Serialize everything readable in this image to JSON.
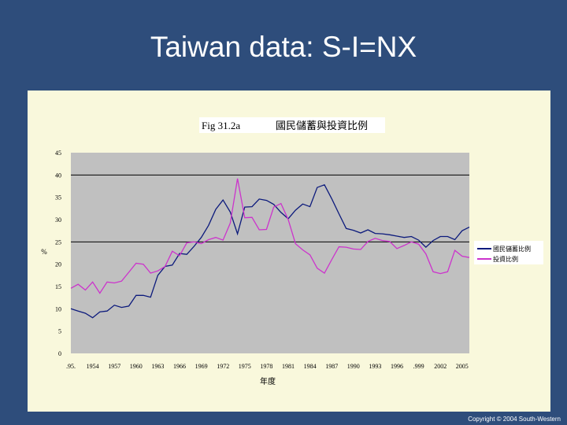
{
  "slide": {
    "title": "Taiwan data: S-I=NX",
    "copyright": "Copyright © 2004 South-Western"
  },
  "colors": {
    "background": "#2e4d7b",
    "panel": "#f9f8dc",
    "plot_area": "#c0c0c0",
    "saving_line": "#0c1a7c",
    "investment_line": "#cc33cc"
  },
  "chart_data": {
    "type": "line",
    "title": "Fig 31.2a",
    "subtitle": "國民儲蓄與投資比例",
    "xlabel": "年度",
    "ylabel": "%",
    "ylim": [
      0,
      45
    ],
    "yticks": [
      0,
      5,
      10,
      15,
      20,
      25,
      30,
      35,
      40,
      45
    ],
    "gridlines_y": [
      25,
      40
    ],
    "xtick_labels": [
      ".95.",
      "1954",
      "1957",
      "1960",
      "1963",
      "1966",
      "1969",
      "1972",
      "1975",
      "1978",
      "1981",
      "1984",
      "1987",
      "1990",
      "1993",
      "1996",
      ".999",
      "2002",
      "2005"
    ],
    "xtick_years": [
      1951,
      1954,
      1957,
      1960,
      1963,
      1966,
      1969,
      1972,
      1975,
      1978,
      1981,
      1984,
      1987,
      1990,
      1993,
      1996,
      1999,
      2002,
      2005
    ],
    "xlim": [
      1951,
      2006
    ],
    "legend": "right",
    "series": [
      {
        "name": "國民儲蓄比例",
        "color": "#0c1a7c",
        "x": [
          1951,
          1952,
          1953,
          1954,
          1955,
          1956,
          1957,
          1958,
          1959,
          1960,
          1961,
          1962,
          1963,
          1964,
          1965,
          1966,
          1967,
          1968,
          1969,
          1970,
          1971,
          1972,
          1973,
          1974,
          1975,
          1976,
          1977,
          1978,
          1979,
          1980,
          1981,
          1982,
          1983,
          1984,
          1985,
          1986,
          1987,
          1988,
          1989,
          1990,
          1991,
          1992,
          1993,
          1994,
          1995,
          1996,
          1997,
          1998,
          1999,
          2000,
          2001,
          2002,
          2003,
          2004,
          2005,
          2006
        ],
        "values": [
          10,
          9.5,
          9,
          8,
          9.3,
          9.5,
          10.8,
          10.3,
          10.6,
          13,
          13,
          12.6,
          17.5,
          19.5,
          19.8,
          22.4,
          22.2,
          24,
          26,
          28.7,
          32.3,
          34.4,
          31.7,
          26.8,
          32.8,
          32.9,
          34.6,
          34.3,
          33.4,
          31.6,
          30.2,
          32.1,
          33.5,
          32.9,
          37.2,
          37.8,
          34.7,
          31.3,
          28,
          27.6,
          27,
          27.7,
          26.9,
          26.8,
          26.6,
          26.3,
          26,
          26.2,
          25.4,
          23.8,
          25.3,
          26.2,
          26.2,
          25.5,
          27.5,
          28.3
        ]
      },
      {
        "name": "投資比例",
        "color": "#cc33cc",
        "x": [
          1951,
          1952,
          1953,
          1954,
          1955,
          1956,
          1957,
          1958,
          1959,
          1960,
          1961,
          1962,
          1963,
          1964,
          1965,
          1966,
          1967,
          1968,
          1969,
          1970,
          1971,
          1972,
          1973,
          1974,
          1975,
          1976,
          1977,
          1978,
          1979,
          1980,
          1981,
          1982,
          1983,
          1984,
          1985,
          1986,
          1987,
          1988,
          1989,
          1990,
          1991,
          1992,
          1993,
          1994,
          1995,
          1996,
          1997,
          1998,
          1999,
          2000,
          2001,
          2002,
          2003,
          2004,
          2005,
          2006
        ],
        "values": [
          14.6,
          15.5,
          14.2,
          16,
          13.5,
          16,
          15.8,
          16.2,
          18.2,
          20.2,
          20,
          18,
          18.5,
          19.5,
          22.9,
          21.9,
          24.8,
          25,
          24.6,
          25.5,
          26,
          25.4,
          29.2,
          39.2,
          30.4,
          30.5,
          27.7,
          27.8,
          32.8,
          33.6,
          30,
          24.6,
          23.2,
          22.1,
          19.1,
          18,
          21,
          23.9,
          23.8,
          23.4,
          23.3,
          25.1,
          25.8,
          25.3,
          25.1,
          23.5,
          24.2,
          25,
          24.5,
          22.3,
          18.3,
          17.9,
          18.3,
          23.1,
          21.8,
          21.5
        ]
      }
    ]
  }
}
